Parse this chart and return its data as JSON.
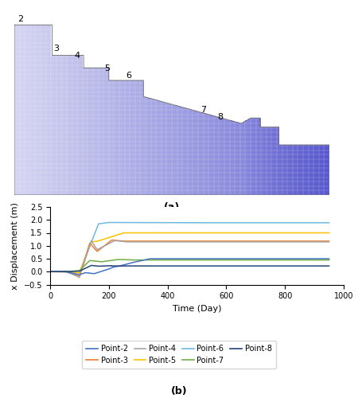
{
  "title_a": "(a)",
  "title_b": "(b)",
  "xlabel": "Time (Day)",
  "ylabel": "x Displacement (m)",
  "xlim": [
    0,
    1000
  ],
  "ylim": [
    -0.5,
    2.5
  ],
  "yticks": [
    -0.5,
    0.0,
    0.5,
    1.0,
    1.5,
    2.0,
    2.5
  ],
  "xticks": [
    0,
    200,
    400,
    600,
    800,
    1000
  ],
  "legend_entries": [
    "Point-2",
    "Point-3",
    "Point-4",
    "Point-5",
    "Point-6",
    "Point-7",
    "Point-8"
  ],
  "line_colors": {
    "Point-2": "#4472C4",
    "Point-3": "#ED7D31",
    "Point-4": "#A5A5A5",
    "Point-5": "#FFC000",
    "Point-6": "#70B8E0",
    "Point-7": "#70AD47",
    "Point-8": "#264478"
  },
  "background_color": "#ffffff",
  "mesh_color_light": "#D8D8F0",
  "mesh_color_mid": "#9090CC",
  "mesh_color_deep": "#5555BB",
  "mesh_line_color": "#AAAACC",
  "mesh_line_alpha": 0.5
}
